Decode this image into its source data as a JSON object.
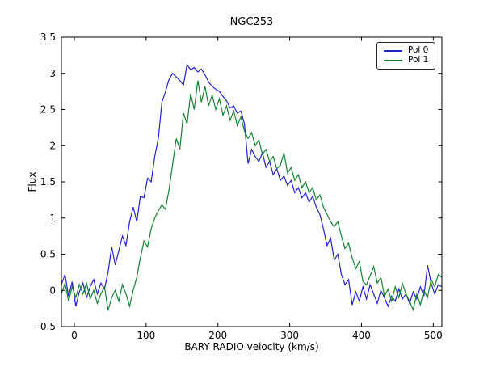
{
  "figure": {
    "background": "#ffffff",
    "frame_color": "#000000"
  },
  "chart_data": {
    "type": "line",
    "title": "NGC253",
    "xlabel": "BARY RADIO velocity (km/s)",
    "ylabel": "Flux",
    "xlim": [
      -18,
      512
    ],
    "ylim": [
      -0.5,
      3.5
    ],
    "grid": false,
    "legend_position": "upper right",
    "xticks": {
      "values": [
        0,
        100,
        200,
        300,
        400,
        500
      ],
      "labels": [
        "0",
        "100",
        "200",
        "300",
        "400",
        "500"
      ]
    },
    "yticks": {
      "values": [
        -0.5,
        0,
        0.5,
        1,
        1.5,
        2,
        2.5,
        3,
        3.5
      ],
      "labels": [
        "-0.5",
        "0",
        "0.5",
        "1",
        "1.5",
        "2",
        "2.5",
        "3",
        "3.5"
      ]
    },
    "x": [
      -18,
      -13,
      -8,
      -3,
      2,
      7,
      12,
      17,
      22,
      27,
      32,
      37,
      42,
      47,
      52,
      57,
      62,
      67,
      72,
      77,
      82,
      87,
      92,
      97,
      102,
      107,
      112,
      117,
      122,
      127,
      132,
      137,
      142,
      147,
      152,
      157,
      162,
      167,
      172,
      177,
      182,
      187,
      192,
      197,
      202,
      207,
      212,
      217,
      222,
      227,
      232,
      237,
      242,
      247,
      252,
      257,
      262,
      267,
      272,
      277,
      282,
      287,
      292,
      297,
      302,
      307,
      312,
      317,
      322,
      327,
      332,
      337,
      342,
      347,
      352,
      357,
      362,
      367,
      372,
      377,
      382,
      387,
      392,
      397,
      402,
      407,
      412,
      417,
      422,
      427,
      432,
      437,
      442,
      447,
      452,
      457,
      462,
      467,
      472,
      477,
      482,
      487,
      492,
      497,
      502,
      507,
      512
    ],
    "series": [
      {
        "name": "Pol 0",
        "color": "#2222cc",
        "values": [
          0.08,
          0.22,
          -0.08,
          0.12,
          -0.22,
          -0.02,
          0.1,
          -0.1,
          0.05,
          0.15,
          -0.05,
          0.1,
          0.02,
          0.25,
          0.6,
          0.35,
          0.55,
          0.75,
          0.62,
          0.95,
          1.15,
          0.95,
          1.3,
          1.28,
          1.55,
          1.5,
          1.85,
          2.1,
          2.6,
          2.75,
          2.92,
          3.0,
          2.95,
          2.9,
          2.84,
          3.12,
          3.05,
          3.08,
          3.02,
          3.06,
          2.98,
          2.88,
          2.82,
          2.78,
          2.75,
          2.68,
          2.62,
          2.52,
          2.55,
          2.45,
          2.48,
          2.3,
          1.75,
          1.95,
          1.85,
          1.78,
          1.9,
          1.7,
          1.78,
          1.6,
          1.68,
          1.52,
          1.58,
          1.45,
          1.52,
          1.35,
          1.42,
          1.28,
          1.35,
          1.22,
          1.3,
          1.15,
          1.05,
          0.85,
          0.62,
          0.72,
          0.42,
          0.5,
          0.22,
          0.08,
          0.15,
          -0.2,
          -0.02,
          -0.15,
          0.05,
          -0.12,
          0.08,
          -0.05,
          -0.18,
          0.0,
          -0.1,
          -0.22,
          -0.08,
          -0.15,
          0.02,
          -0.12,
          -0.05,
          -0.18,
          -0.02,
          -0.12,
          0.05,
          -0.08,
          0.35,
          0.1,
          -0.05,
          0.08,
          0.05
        ]
      },
      {
        "name": "Pol 1",
        "color": "#158233",
        "values": [
          -0.05,
          0.1,
          -0.15,
          0.05,
          -0.1,
          0.08,
          -0.05,
          0.1,
          -0.12,
          0.0,
          -0.18,
          -0.05,
          0.05,
          -0.28,
          -0.1,
          0.0,
          -0.15,
          0.08,
          -0.05,
          -0.22,
          0.0,
          0.18,
          0.45,
          0.68,
          0.6,
          0.85,
          1.0,
          1.1,
          1.18,
          1.12,
          1.4,
          1.75,
          2.1,
          1.95,
          2.45,
          2.3,
          2.72,
          2.5,
          2.9,
          2.6,
          2.82,
          2.55,
          2.7,
          2.5,
          2.65,
          2.42,
          2.55,
          2.35,
          2.48,
          2.28,
          2.4,
          2.2,
          2.1,
          2.18,
          2.0,
          2.08,
          1.88,
          1.95,
          1.78,
          1.85,
          1.68,
          1.73,
          1.9,
          1.62,
          1.7,
          1.52,
          1.6,
          1.42,
          1.5,
          1.35,
          1.42,
          1.25,
          1.32,
          1.15,
          1.05,
          0.95,
          0.88,
          0.95,
          0.75,
          0.58,
          0.65,
          0.45,
          0.3,
          0.4,
          0.12,
          0.08,
          0.2,
          0.33,
          0.1,
          0.18,
          -0.08,
          0.02,
          -0.15,
          0.05,
          -0.1,
          0.1,
          -0.05,
          -0.15,
          -0.27,
          -0.05,
          -0.2,
          0.0,
          -0.1,
          0.15,
          0.05,
          0.22,
          0.18
        ]
      }
    ]
  }
}
